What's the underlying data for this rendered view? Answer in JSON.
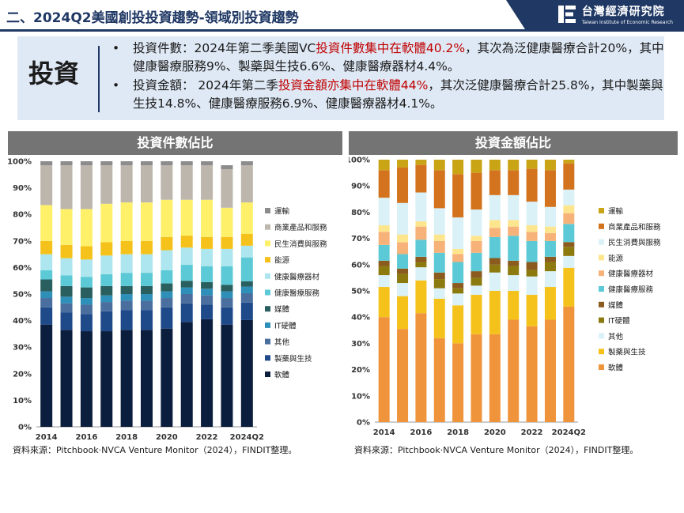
{
  "header": {
    "title": "二、2024Q2美國創投投資趨勢-領域別投資趨勢",
    "logo_cn": "台灣經濟研究院",
    "logo_en": "Taiwan Institute of Economic Research"
  },
  "summary": {
    "tag": "投資",
    "bullet_marker": "•",
    "b1_pre": "投資件數：2024年第二季美國VC",
    "b1_hl": "投資件數集中在軟體40.2%",
    "b1_post": "，其次為泛健康醫療合計20%，其中健康醫療服務9%、製藥與生技6.6%、健康醫療器材4.4%。",
    "b2_pre": "投資金額： 2024年第二季",
    "b2_hl": "投資金額亦集中在軟體44%",
    "b2_post": "，其次泛健康醫療合計25.8%，其中製藥與生技14.8%、健康醫療服務6.9%、健康醫療器材4.1%。"
  },
  "colors": {
    "brand_navy": "#1f3864",
    "highlight_red": "#c00000",
    "chart_header_gray": "#747474",
    "summary_bg": "#dfe9f5"
  },
  "chart_data": [
    {
      "type": "bar",
      "stacked": true,
      "title": "投資件數佔比",
      "ylim": [
        0,
        100
      ],
      "yticks": [
        "0%",
        "10%",
        "20%",
        "30%",
        "40%",
        "50%",
        "60%",
        "70%",
        "80%",
        "90%",
        "100%"
      ],
      "x_tick_labels": [
        "2014",
        "2016",
        "2018",
        "2020",
        "2022",
        "2024Q2"
      ],
      "categories": [
        "2014",
        "2015",
        "2016",
        "2017",
        "2018",
        "2019",
        "2020",
        "2021",
        "2022",
        "2023",
        "2024Q2"
      ],
      "legend_position": "right",
      "series": [
        {
          "name": "軟體",
          "color": "#0c1e3d",
          "values": [
            38.5,
            36.5,
            36,
            36,
            36.5,
            36.5,
            37,
            39.5,
            40.5,
            38.5,
            40.2
          ]
        },
        {
          "name": "製藥與生技",
          "color": "#1f4a8a",
          "values": [
            6.5,
            6.5,
            6.5,
            7.5,
            7.5,
            7.5,
            8,
            7,
            5.5,
            6.5,
            6.6
          ]
        },
        {
          "name": "其他",
          "color": "#4a6f9e",
          "values": [
            3.5,
            3.5,
            3.5,
            3.5,
            3.5,
            3.5,
            3.5,
            3.5,
            3.5,
            3.5,
            3.5
          ]
        },
        {
          "name": "IT硬體",
          "color": "#2e8fb8",
          "values": [
            2.5,
            2.5,
            2.5,
            2.5,
            2.5,
            2.5,
            2.5,
            2.5,
            2.5,
            2.5,
            2.5
          ]
        },
        {
          "name": "媒體",
          "color": "#2a5f5f",
          "values": [
            4.5,
            4,
            4,
            3.5,
            3,
            3,
            3,
            2.5,
            2.5,
            2.5,
            2
          ]
        },
        {
          "name": "健康醫療服務",
          "color": "#5ccad6",
          "values": [
            3.5,
            4,
            4,
            4.5,
            5,
            5,
            5,
            6,
            6,
            7,
            9
          ]
        },
        {
          "name": "健康醫療器材",
          "color": "#aee6ef",
          "values": [
            6,
            6.5,
            6.5,
            7,
            7,
            7,
            7.5,
            6.5,
            6.5,
            6.5,
            4.4
          ]
        },
        {
          "name": "能源",
          "color": "#f5c21c",
          "values": [
            5,
            5,
            5,
            5,
            5,
            5,
            5,
            4.5,
            4.5,
            4.5,
            4.5
          ]
        },
        {
          "name": "民生消費與服務",
          "color": "#fff06a",
          "values": [
            13.5,
            13.5,
            14,
            14.5,
            14.5,
            14.5,
            14,
            13.5,
            14,
            11,
            11.8
          ]
        },
        {
          "name": "商業產品和服務",
          "color": "#bdb6ad",
          "values": [
            15,
            16.5,
            16.5,
            14.5,
            14,
            14,
            13,
            13,
            13,
            14.5,
            14
          ]
        },
        {
          "name": "運輸",
          "color": "#8c8c8c",
          "values": [
            1.5,
            1.5,
            1.5,
            1.5,
            1.5,
            1.5,
            1.5,
            1.5,
            1.5,
            1.5,
            1.5
          ]
        }
      ]
    },
    {
      "type": "bar",
      "stacked": true,
      "title": "投資金額佔比",
      "ylim": [
        0,
        100
      ],
      "yticks": [
        "0%",
        "10%",
        "20%",
        "30%",
        "40%",
        "50%",
        "60%",
        "70%",
        "80%",
        "90%",
        "100%"
      ],
      "x_tick_labels": [
        "2014",
        "2016",
        "2018",
        "2020",
        "2022",
        "2024Q2"
      ],
      "categories": [
        "2014",
        "2015",
        "2016",
        "2017",
        "2018",
        "2019",
        "2020",
        "2021",
        "2022",
        "2023",
        "2024Q2"
      ],
      "legend_position": "right",
      "series": [
        {
          "name": "軟體",
          "color": "#f0943c",
          "values": [
            40,
            35.5,
            41.5,
            32,
            30,
            33.5,
            33.5,
            39,
            36.5,
            39,
            44
          ]
        },
        {
          "name": "製藥與生技",
          "color": "#f5c21c",
          "values": [
            11.5,
            12.5,
            12.5,
            15,
            14.5,
            15,
            16.5,
            11,
            12,
            12.5,
            14.8
          ]
        },
        {
          "name": "其他",
          "color": "#d9f1f7",
          "values": [
            4.5,
            5,
            5,
            4,
            4.5,
            3.5,
            7,
            6,
            7,
            6,
            4.5
          ]
        },
        {
          "name": "IT硬體",
          "color": "#8c7a0f",
          "values": [
            3.5,
            3.5,
            2,
            3.5,
            2,
            3,
            3,
            3.5,
            2.5,
            3.5,
            3.5
          ]
        },
        {
          "name": "媒體",
          "color": "#8b5a1e",
          "values": [
            2,
            2,
            2,
            2.5,
            2,
            2.5,
            2.5,
            2,
            3,
            2,
            1.8
          ]
        },
        {
          "name": "健康醫療服務",
          "color": "#5ccad6",
          "values": [
            6,
            5.5,
            6.5,
            7.5,
            8,
            7,
            8,
            9.5,
            8,
            6,
            6.9
          ]
        },
        {
          "name": "健康醫療器材",
          "color": "#f7b27a",
          "values": [
            5,
            4.5,
            5,
            4.5,
            3,
            4.5,
            3.5,
            3.5,
            3.5,
            3,
            4.1
          ]
        },
        {
          "name": "能源",
          "color": "#fde58e",
          "values": [
            2.5,
            3,
            2,
            2.5,
            2,
            2,
            3,
            2.5,
            2.5,
            2.5,
            3
          ]
        },
        {
          "name": "民生消費與服務",
          "color": "#d9f1f7",
          "values": [
            10.5,
            12,
            11,
            10,
            12,
            10,
            9.5,
            9.5,
            9,
            7.5,
            6
          ]
        },
        {
          "name": "商業產品和服務",
          "color": "#d4731e",
          "values": [
            10.5,
            13.5,
            10.5,
            14.5,
            16.5,
            14,
            9.5,
            9.5,
            12.5,
            14,
            10
          ]
        },
        {
          "name": "運輸",
          "color": "#c9a516",
          "values": [
            4,
            3,
            2,
            4,
            5.5,
            5,
            4,
            4,
            3.5,
            4,
            1.4
          ]
        }
      ]
    }
  ],
  "footer": {
    "source_left": "資料來源：Pitchbook‧NVCA Venture Monitor（2024），FINDIT整理。",
    "source_right": "資料來源：Pitchbook‧NVCA Venture Monitor（2024），FINDIT整理。"
  }
}
